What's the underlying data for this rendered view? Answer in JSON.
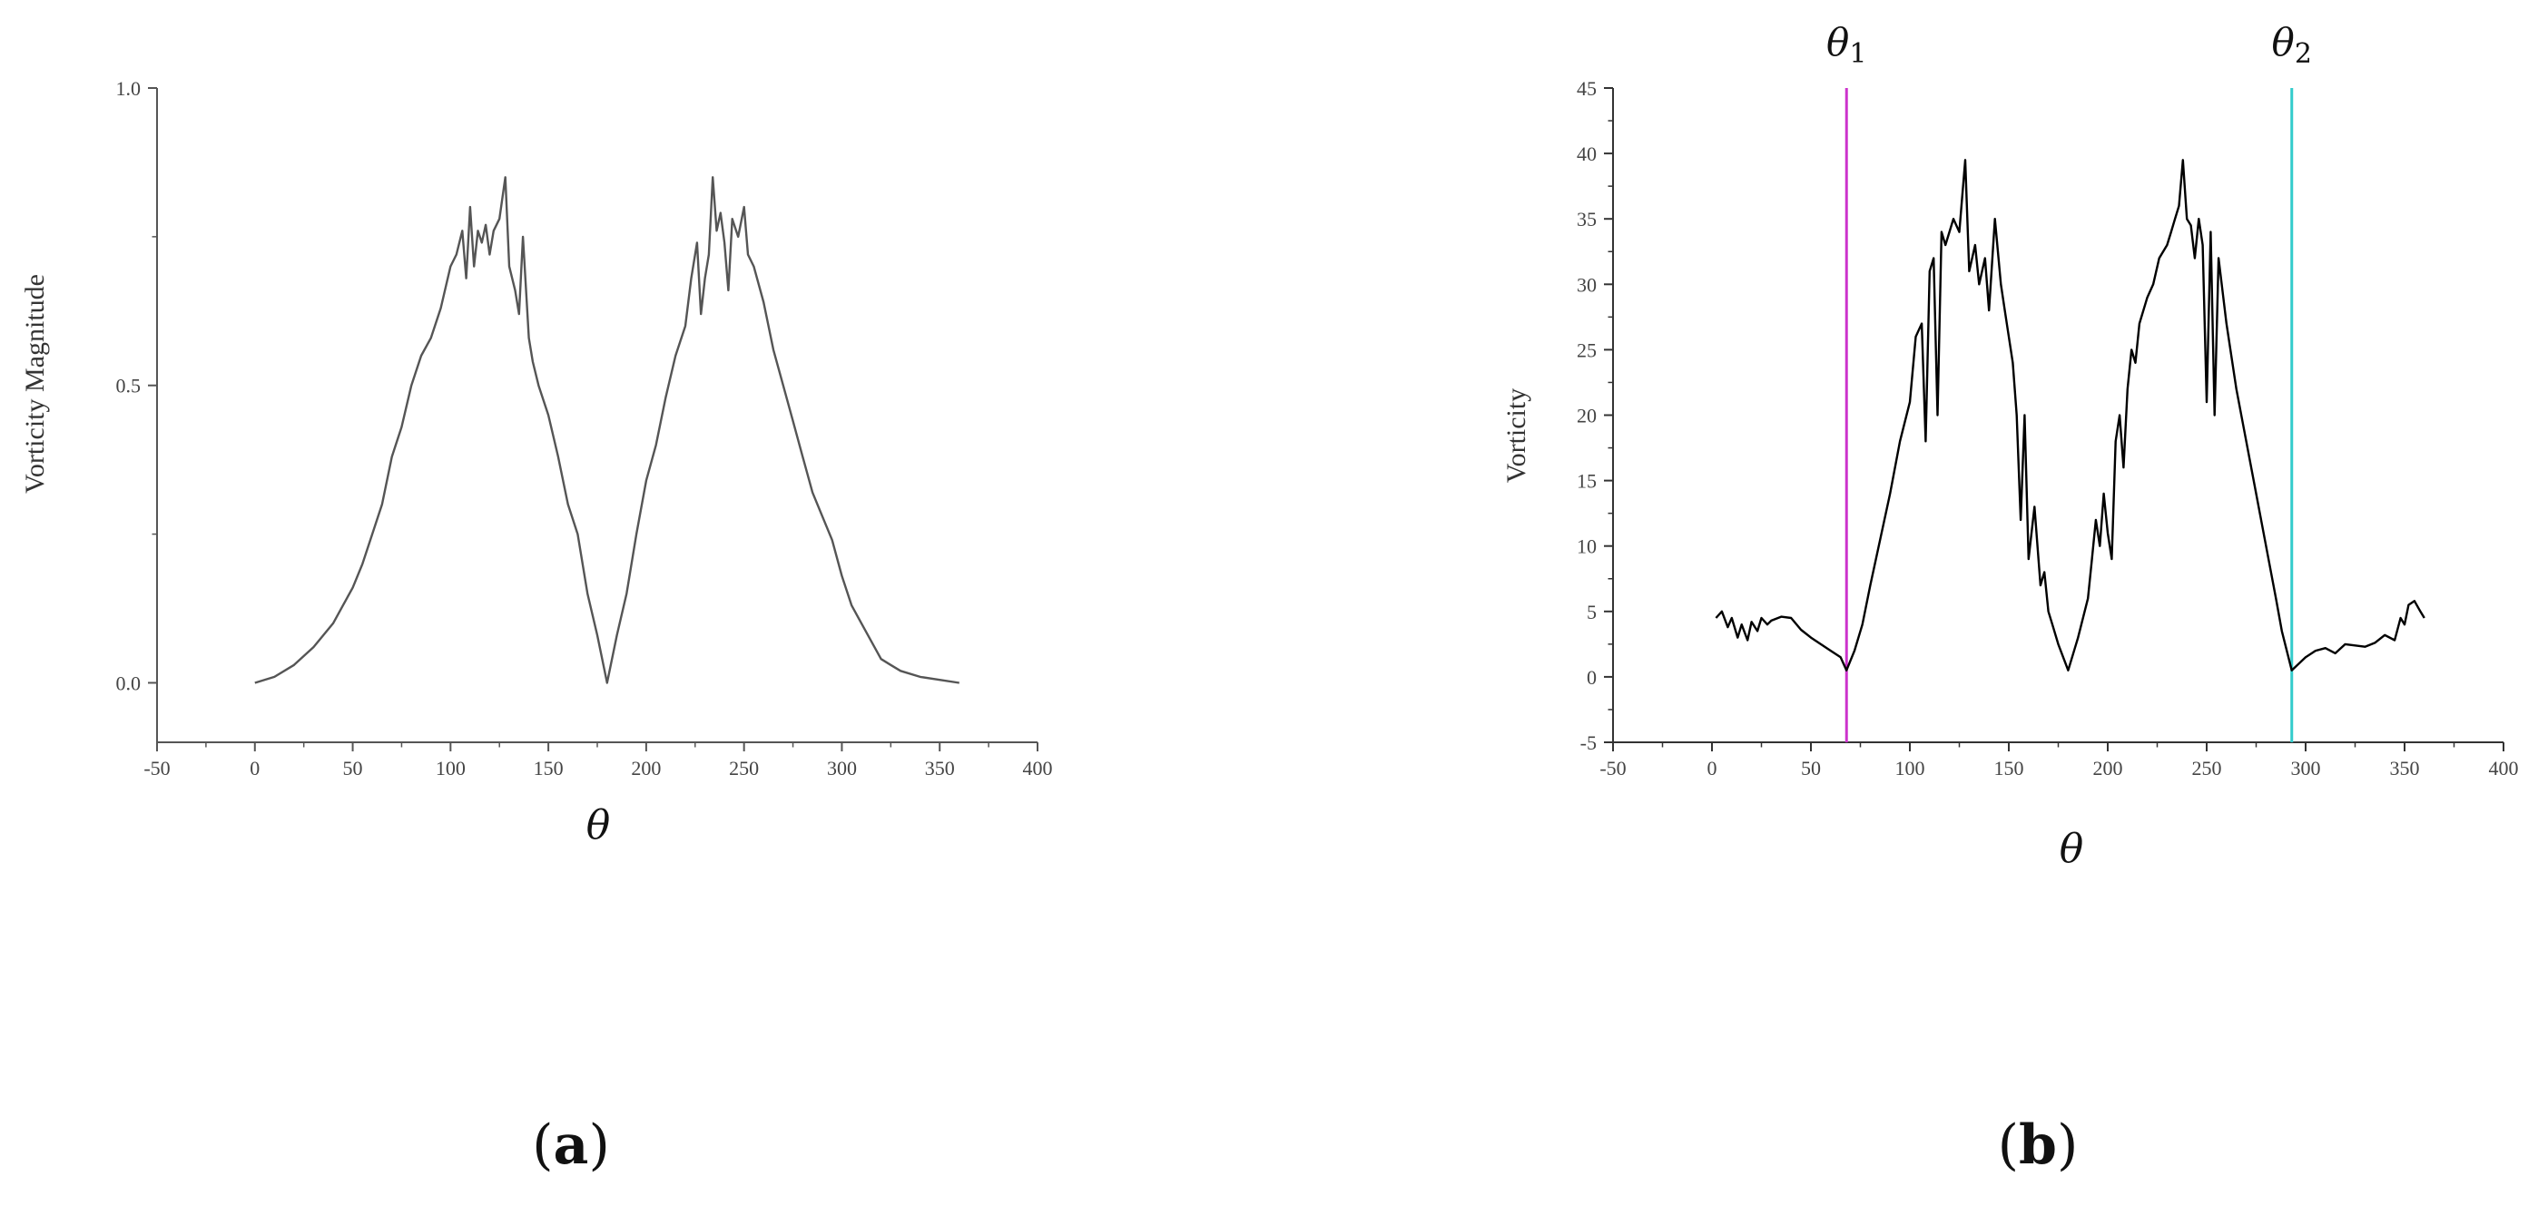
{
  "panels": [
    {
      "label_open": "(",
      "label_letter": "a",
      "label_close": ")"
    },
    {
      "label_open": "(",
      "label_letter": "b",
      "label_close": ")"
    }
  ],
  "chart_data": [
    {
      "type": "line",
      "title": "",
      "xlabel": "θ",
      "ylabel": "Vorticity Magnitude",
      "xlim": [
        -50,
        400
      ],
      "ylim": [
        -0.1,
        1.0
      ],
      "xticks": [
        -50,
        0,
        50,
        100,
        150,
        200,
        250,
        300,
        350,
        400
      ],
      "yticks": [
        0.0,
        0.5,
        1.0
      ],
      "ytick_labels": [
        "0.0",
        "0.5",
        "1.0"
      ],
      "grid": false,
      "line_color": "#555555",
      "series": [
        {
          "x": [
            0,
            10,
            20,
            30,
            35,
            40,
            45,
            50,
            55,
            60,
            65,
            70,
            75,
            80,
            85,
            90,
            95,
            100,
            103,
            106,
            108,
            110,
            112,
            114,
            116,
            118,
            120,
            122,
            125,
            128,
            130,
            133,
            135,
            137,
            140,
            142,
            145,
            150,
            155,
            160,
            165,
            170,
            175,
            180,
            185,
            190,
            195,
            200,
            205,
            210,
            215,
            220,
            223,
            226,
            228,
            230,
            232,
            234,
            236,
            238,
            240,
            242,
            244,
            247,
            250,
            252,
            255,
            260,
            265,
            270,
            275,
            280,
            285,
            290,
            295,
            300,
            305,
            310,
            315,
            320,
            325,
            330,
            340,
            350,
            360
          ],
          "y": [
            0.0,
            0.01,
            0.03,
            0.06,
            0.08,
            0.1,
            0.13,
            0.16,
            0.2,
            0.25,
            0.3,
            0.38,
            0.43,
            0.5,
            0.55,
            0.58,
            0.63,
            0.7,
            0.72,
            0.76,
            0.68,
            0.8,
            0.7,
            0.76,
            0.74,
            0.77,
            0.72,
            0.76,
            0.78,
            0.85,
            0.7,
            0.66,
            0.62,
            0.75,
            0.58,
            0.54,
            0.5,
            0.45,
            0.38,
            0.3,
            0.25,
            0.15,
            0.08,
            0.0,
            0.08,
            0.15,
            0.25,
            0.34,
            0.4,
            0.48,
            0.55,
            0.6,
            0.68,
            0.74,
            0.62,
            0.68,
            0.72,
            0.85,
            0.76,
            0.79,
            0.74,
            0.66,
            0.78,
            0.75,
            0.8,
            0.72,
            0.7,
            0.64,
            0.56,
            0.5,
            0.44,
            0.38,
            0.32,
            0.28,
            0.24,
            0.18,
            0.13,
            0.1,
            0.07,
            0.04,
            0.03,
            0.02,
            0.01,
            0.005,
            0.0
          ]
        }
      ]
    },
    {
      "type": "line",
      "title": "",
      "xlabel": "θ",
      "ylabel": "Vorticity",
      "xlim": [
        -50,
        400
      ],
      "ylim": [
        -5,
        45
      ],
      "xticks": [
        -50,
        0,
        50,
        100,
        150,
        200,
        250,
        300,
        350,
        400
      ],
      "yticks": [
        -5,
        0,
        5,
        10,
        15,
        20,
        25,
        30,
        35,
        40,
        45
      ],
      "grid": false,
      "line_color": "#000000",
      "markers": [
        {
          "name": "θ",
          "sub": "1",
          "x": 68,
          "color": "#cc33cc"
        },
        {
          "name": "θ",
          "sub": "2",
          "x": 293,
          "color": "#33cccc"
        }
      ],
      "series": [
        {
          "x": [
            2,
            5,
            8,
            10,
            13,
            15,
            18,
            20,
            23,
            25,
            28,
            30,
            35,
            40,
            45,
            50,
            55,
            60,
            65,
            68,
            72,
            76,
            80,
            85,
            90,
            95,
            100,
            103,
            106,
            108,
            110,
            112,
            114,
            116,
            118,
            120,
            122,
            125,
            128,
            130,
            133,
            135,
            138,
            140,
            143,
            146,
            148,
            150,
            152,
            154,
            156,
            158,
            160,
            163,
            166,
            168,
            170,
            172,
            175,
            180,
            185,
            190,
            192,
            194,
            196,
            198,
            200,
            202,
            204,
            206,
            208,
            210,
            212,
            214,
            216,
            220,
            223,
            226,
            230,
            232,
            234,
            236,
            238,
            240,
            242,
            244,
            246,
            248,
            250,
            252,
            254,
            256,
            260,
            265,
            270,
            275,
            280,
            285,
            288,
            293,
            300,
            305,
            310,
            315,
            320,
            330,
            335,
            340,
            345,
            348,
            350,
            352,
            355,
            358,
            360
          ],
          "y": [
            4.5,
            5.0,
            3.8,
            4.5,
            3.0,
            4.0,
            2.8,
            4.2,
            3.5,
            4.5,
            4.0,
            4.3,
            4.6,
            4.5,
            3.6,
            3.0,
            2.5,
            2.0,
            1.5,
            0.5,
            2.0,
            4.0,
            7.0,
            10.5,
            14.0,
            18.0,
            21.0,
            26.0,
            27.0,
            18.0,
            31.0,
            32.0,
            20.0,
            34.0,
            33.0,
            34.0,
            35.0,
            34.0,
            39.5,
            31.0,
            33.0,
            30.0,
            32.0,
            28.0,
            35.0,
            30.0,
            28.0,
            26.0,
            24.0,
            20.0,
            12.0,
            20.0,
            9.0,
            13.0,
            7.0,
            8.0,
            5.0,
            4.0,
            2.5,
            0.5,
            3.0,
            6.0,
            9.0,
            12.0,
            10.0,
            14.0,
            11.0,
            9.0,
            18.0,
            20.0,
            16.0,
            22.0,
            25.0,
            24.0,
            27.0,
            29.0,
            30.0,
            32.0,
            33.0,
            34.0,
            35.0,
            36.0,
            39.5,
            35.0,
            34.5,
            32.0,
            35.0,
            33.0,
            21.0,
            34.0,
            20.0,
            32.0,
            27.0,
            22.0,
            18.0,
            14.0,
            10.0,
            6.0,
            3.5,
            0.5,
            1.5,
            2.0,
            2.2,
            1.8,
            2.5,
            2.3,
            2.6,
            3.2,
            2.8,
            4.5,
            4.0,
            5.5,
            5.8,
            5.0,
            4.5
          ]
        }
      ]
    }
  ]
}
